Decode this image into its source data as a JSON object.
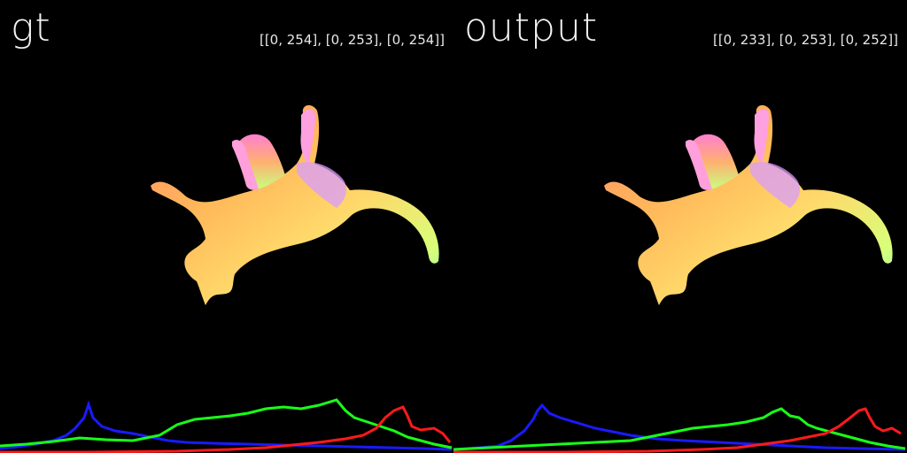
{
  "panels": [
    {
      "id": "gt",
      "title": "gt",
      "range_text": "[[0, 254], [0, 253], [0, 254]]",
      "subject": "cat normal map render"
    },
    {
      "id": "output",
      "title": "output",
      "range_text": "[[0, 233], [0, 253], [0, 252]]",
      "subject": "cat normal map render"
    }
  ],
  "colors": {
    "background": "#000000",
    "hist_red": "#ff1a1a",
    "hist_green": "#19ff19",
    "hist_blue": "#1a1aff",
    "text": "#f2f2f2"
  }
}
